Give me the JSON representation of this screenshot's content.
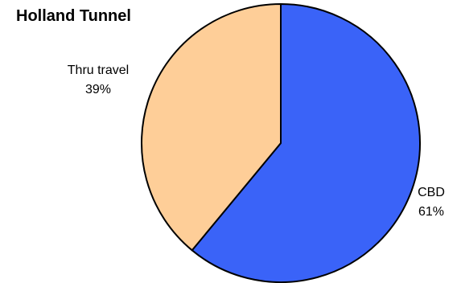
{
  "chart_data": {
    "type": "pie",
    "title": "Holland Tunnel",
    "slices": [
      {
        "label": "CBD",
        "value": 61,
        "value_label": "61%",
        "color": "#3A63F8"
      },
      {
        "label": "Thru travel",
        "value": 39,
        "value_label": "39%",
        "color": "#FECE98"
      }
    ],
    "start_angle_deg": 0,
    "direction": "clockwise",
    "edge_color": "#000000",
    "legend": "none"
  }
}
